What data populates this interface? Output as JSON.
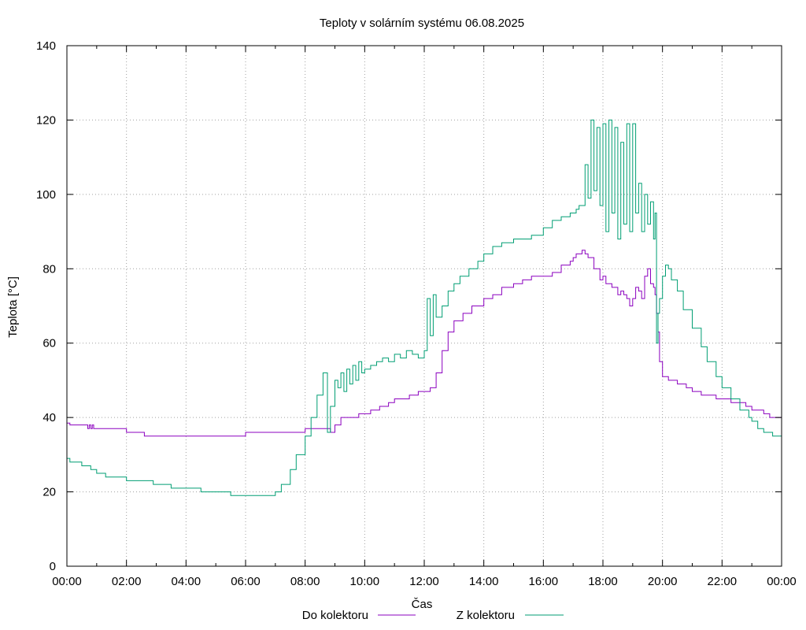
{
  "chart_data": {
    "type": "line",
    "title": "Teploty v solárním systému 06.08.2025",
    "xlabel": "Čas",
    "ylabel": "Teplota [°C]",
    "xlim": [
      0,
      24
    ],
    "ylim": [
      0,
      140
    ],
    "x_unit": "hours",
    "x_tick_values": [
      0,
      2,
      4,
      6,
      8,
      10,
      12,
      14,
      16,
      18,
      20,
      22,
      24
    ],
    "x_tick_labels": [
      "00:00",
      "02:00",
      "04:00",
      "06:00",
      "08:00",
      "10:00",
      "12:00",
      "14:00",
      "16:00",
      "18:00",
      "20:00",
      "22:00",
      "00:00"
    ],
    "y_ticks": [
      0,
      20,
      40,
      60,
      80,
      100,
      120,
      140
    ],
    "grid": true,
    "legend_position": "bottom",
    "series": [
      {
        "name": "Do kolektoru",
        "color": "#8b00bf",
        "x": [
          0.0,
          0.1,
          0.5,
          0.7,
          0.75,
          0.8,
          0.85,
          0.9,
          1.0,
          1.5,
          2.0,
          2.3,
          2.6,
          3.5,
          4.5,
          5.5,
          5.9,
          6.0,
          7.0,
          8.0,
          8.5,
          8.8,
          8.85,
          9.0,
          9.2,
          9.5,
          9.8,
          10.0,
          10.2,
          10.5,
          10.8,
          11.0,
          11.2,
          11.5,
          11.8,
          12.0,
          12.2,
          12.4,
          12.6,
          12.8,
          13.0,
          13.3,
          13.6,
          14.0,
          14.3,
          14.6,
          15.0,
          15.3,
          15.6,
          16.0,
          16.3,
          16.6,
          16.9,
          17.0,
          17.1,
          17.2,
          17.3,
          17.4,
          17.5,
          17.7,
          17.9,
          18.0,
          18.1,
          18.3,
          18.5,
          18.6,
          18.7,
          18.8,
          18.9,
          19.0,
          19.1,
          19.2,
          19.3,
          19.4,
          19.5,
          19.6,
          19.7,
          19.75,
          19.8,
          19.85,
          19.9,
          20.0,
          20.2,
          20.5,
          20.8,
          21.0,
          21.3,
          21.5,
          21.8,
          22.0,
          22.3,
          22.6,
          22.8,
          23.0,
          23.2,
          23.4,
          23.6,
          24.0
        ],
        "y": [
          38.5,
          38,
          38,
          37,
          38,
          37,
          38,
          37,
          37,
          37,
          36,
          36,
          35,
          35,
          35,
          35,
          35,
          36,
          36,
          37,
          37,
          37,
          36,
          38,
          40,
          40,
          41,
          41,
          42,
          43,
          44,
          45,
          45,
          46,
          47,
          47,
          48,
          52,
          58,
          63,
          66,
          68,
          70,
          72,
          73,
          75,
          76,
          77,
          78,
          78,
          79,
          81,
          82,
          83,
          84,
          84,
          85,
          84,
          83,
          80,
          77,
          78,
          76,
          75,
          73,
          74,
          73,
          72,
          70,
          72,
          75,
          74,
          72,
          78,
          80,
          76,
          75,
          73,
          68,
          63,
          55,
          51,
          50,
          49,
          48,
          47,
          46,
          46,
          45,
          45,
          44,
          44,
          43,
          42,
          42,
          41,
          40,
          40
        ]
      },
      {
        "name": "Z kolektoru",
        "color": "#009e73",
        "x": [
          0.0,
          0.1,
          0.3,
          0.5,
          0.8,
          1.0,
          1.3,
          1.6,
          2.0,
          2.5,
          2.9,
          3.2,
          3.5,
          4.0,
          4.5,
          5.0,
          5.5,
          6.0,
          6.5,
          6.8,
          7.0,
          7.2,
          7.5,
          7.7,
          8.0,
          8.2,
          8.4,
          8.6,
          8.75,
          8.85,
          9.0,
          9.1,
          9.2,
          9.3,
          9.4,
          9.5,
          9.6,
          9.7,
          9.8,
          9.9,
          10.0,
          10.2,
          10.4,
          10.6,
          10.8,
          11.0,
          11.2,
          11.4,
          11.6,
          11.8,
          12.0,
          12.1,
          12.2,
          12.3,
          12.4,
          12.6,
          12.8,
          13.0,
          13.2,
          13.5,
          13.8,
          14.0,
          14.3,
          14.6,
          15.0,
          15.3,
          15.6,
          16.0,
          16.3,
          16.6,
          16.9,
          17.1,
          17.2,
          17.3,
          17.4,
          17.5,
          17.6,
          17.7,
          17.8,
          17.9,
          18.0,
          18.1,
          18.2,
          18.3,
          18.4,
          18.5,
          18.6,
          18.7,
          18.8,
          18.9,
          19.0,
          19.1,
          19.2,
          19.3,
          19.4,
          19.5,
          19.6,
          19.7,
          19.75,
          19.8,
          19.85,
          19.9,
          20.0,
          20.1,
          20.2,
          20.3,
          20.5,
          20.7,
          21.0,
          21.3,
          21.5,
          21.8,
          22.0,
          22.3,
          22.6,
          22.9,
          23.0,
          23.2,
          23.4,
          23.7,
          24.0
        ],
        "y": [
          29,
          28,
          28,
          27,
          26,
          25,
          24,
          24,
          23,
          23,
          22,
          22,
          21,
          21,
          20,
          20,
          19,
          19,
          19,
          19,
          20,
          22,
          26,
          30,
          35,
          40,
          46,
          52,
          36,
          43,
          50,
          48,
          52,
          47,
          53,
          49,
          54,
          50,
          55,
          52,
          53,
          54,
          55,
          56,
          55,
          57,
          56,
          58,
          57,
          56,
          58,
          72,
          62,
          73,
          67,
          70,
          74,
          76,
          78,
          80,
          82,
          84,
          86,
          87,
          88,
          88,
          89,
          91,
          93,
          94,
          95,
          96,
          97,
          97,
          108,
          99,
          120,
          101,
          118,
          97,
          119,
          90,
          120,
          95,
          118,
          88,
          114,
          92,
          119,
          90,
          119,
          95,
          103,
          90,
          100,
          92,
          98,
          88,
          95,
          60,
          68,
          72,
          78,
          81,
          80,
          77,
          74,
          69,
          64,
          59,
          55,
          51,
          48,
          45,
          42,
          40,
          39,
          37,
          36,
          35,
          34.5
        ]
      }
    ]
  }
}
